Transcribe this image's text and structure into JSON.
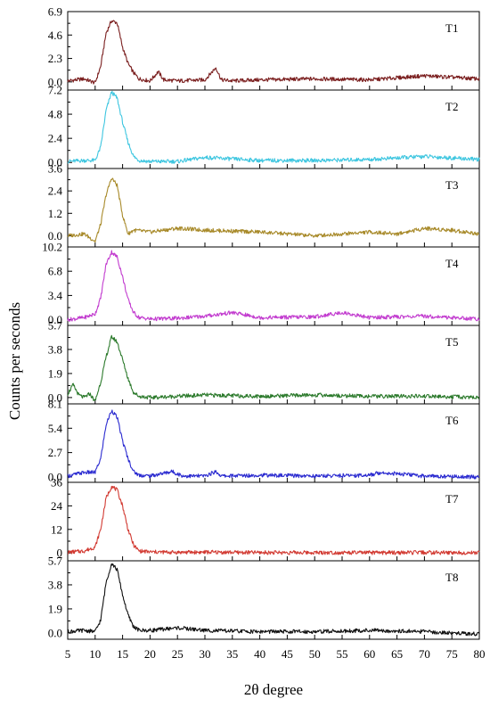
{
  "chart_data": {
    "type": "line",
    "xlabel": "2θ degree",
    "ylabel": "Counts per seconds",
    "xlim": [
      5,
      80
    ],
    "x_ticks": [
      5,
      10,
      15,
      20,
      25,
      30,
      35,
      40,
      45,
      50,
      55,
      60,
      65,
      70,
      75,
      80
    ],
    "x_tick_labels": [
      "5",
      "10",
      "15",
      "20",
      "25",
      "30",
      "35",
      "40",
      "45",
      "50",
      "55",
      "60",
      "65",
      "70",
      "75",
      "80"
    ],
    "panels": [
      {
        "name": "T1",
        "color": "#7a1e1e",
        "ylim": [
          -0.8,
          6.9
        ],
        "y_ticks": [
          0.0,
          2.3,
          4.6,
          6.9
        ],
        "y_tick_labels": [
          "0.0",
          "2.3",
          "4.6",
          "6.9"
        ],
        "x": [
          5,
          8,
          10,
          11,
          12,
          13,
          14,
          15,
          16,
          17,
          18,
          20,
          21.5,
          22.5,
          25,
          30,
          32,
          33,
          35,
          40,
          50,
          60,
          70,
          80
        ],
        "y": [
          0.1,
          0.3,
          -0.1,
          1.5,
          4.8,
          6.0,
          5.8,
          3.4,
          1.8,
          0.9,
          0.3,
          0.1,
          1.0,
          0.2,
          0.1,
          0.2,
          1.4,
          0.2,
          0.1,
          0.2,
          0.3,
          0.2,
          0.6,
          0.3
        ]
      },
      {
        "name": "T2",
        "color": "#3ec6e0",
        "ylim": [
          -0.6,
          7.2
        ],
        "y_ticks": [
          0.0,
          2.4,
          4.8,
          7.2
        ],
        "y_tick_labels": [
          "0.0",
          "2.4",
          "4.8",
          "7.2"
        ],
        "x": [
          5,
          8,
          10,
          11,
          12,
          13,
          14,
          15,
          16,
          17,
          18,
          20,
          25,
          30,
          40,
          50,
          60,
          70,
          80
        ],
        "y": [
          0.1,
          0.2,
          0.2,
          1.5,
          5.2,
          7.0,
          6.4,
          4.0,
          2.0,
          0.6,
          0.2,
          0.1,
          0.1,
          0.5,
          0.2,
          0.2,
          0.3,
          0.6,
          0.3
        ]
      },
      {
        "name": "T3",
        "color": "#a88a2a",
        "ylim": [
          -0.6,
          3.6
        ],
        "y_ticks": [
          0.0,
          1.2,
          2.4,
          3.6
        ],
        "y_tick_labels": [
          "0.0",
          "1.2",
          "2.4",
          "3.6"
        ],
        "x": [
          5,
          8,
          10,
          11,
          12,
          13,
          14,
          15,
          16,
          17,
          20,
          25,
          30,
          40,
          50,
          60,
          65,
          70,
          75,
          80
        ],
        "y": [
          0.0,
          0.1,
          -0.3,
          0.6,
          2.2,
          3.1,
          2.7,
          1.1,
          0.1,
          0.3,
          0.2,
          0.4,
          0.3,
          0.2,
          0.0,
          0.2,
          0.1,
          0.4,
          0.3,
          0.1
        ]
      },
      {
        "name": "T4",
        "color": "#c23ccf",
        "ylim": [
          -0.8,
          10.2
        ],
        "y_ticks": [
          0.0,
          3.4,
          6.8,
          10.2
        ],
        "y_tick_labels": [
          "0.0",
          "3.4",
          "6.8",
          "10.2"
        ],
        "x": [
          5,
          8,
          10,
          11,
          12,
          13,
          14,
          15,
          16,
          17,
          18,
          20,
          25,
          30,
          35,
          40,
          50,
          55,
          60,
          70,
          80
        ],
        "y": [
          0.0,
          0.3,
          0.8,
          3.0,
          7.8,
          9.5,
          8.8,
          6.0,
          2.8,
          1.0,
          0.3,
          0.1,
          0.2,
          0.5,
          1.0,
          0.3,
          0.4,
          1.0,
          0.3,
          0.5,
          0.1
        ]
      },
      {
        "name": "T5",
        "color": "#2c7a2c",
        "ylim": [
          -0.5,
          5.7
        ],
        "y_ticks": [
          0.0,
          1.9,
          3.8,
          5.7
        ],
        "y_tick_labels": [
          "0.0",
          "1.9",
          "3.8",
          "5.7"
        ],
        "x": [
          5,
          6,
          7,
          8,
          9,
          10,
          11,
          12,
          13,
          14,
          15,
          16,
          17,
          18,
          20,
          25,
          30,
          40,
          50,
          60,
          70,
          80
        ],
        "y": [
          0.3,
          1.0,
          0.2,
          0.0,
          0.3,
          -0.3,
          1.2,
          3.2,
          4.8,
          4.4,
          3.0,
          1.5,
          0.4,
          0.1,
          0.0,
          0.1,
          0.2,
          0.1,
          0.2,
          0.1,
          0.1,
          0.0
        ]
      },
      {
        "name": "T6",
        "color": "#2a2ad0",
        "ylim": [
          -0.6,
          8.1
        ],
        "y_ticks": [
          0.0,
          2.7,
          5.4,
          8.1
        ],
        "y_tick_labels": [
          "0.0",
          "2.7",
          "5.4",
          "8.1"
        ],
        "x": [
          5,
          8,
          10,
          11,
          12,
          13,
          14,
          15,
          16,
          17,
          18,
          20,
          24,
          26,
          30,
          32,
          33,
          40,
          50,
          60,
          62,
          70,
          80
        ],
        "y": [
          0.1,
          0.5,
          0.5,
          2.0,
          5.8,
          7.4,
          6.6,
          4.0,
          2.0,
          0.6,
          0.2,
          0.1,
          0.6,
          0.1,
          0.1,
          0.6,
          0.1,
          0.2,
          0.1,
          0.2,
          0.5,
          0.1,
          0.0
        ]
      },
      {
        "name": "T7",
        "color": "#d23a32",
        "ylim": [
          -4,
          36
        ],
        "y_ticks": [
          0,
          12,
          24,
          36
        ],
        "y_tick_labels": [
          "0",
          "12",
          "24",
          "36"
        ],
        "x": [
          5,
          8,
          10,
          11,
          12,
          13,
          14,
          15,
          16,
          17,
          18,
          20,
          25,
          30,
          40,
          50,
          60,
          70,
          80
        ],
        "y": [
          0.3,
          1.0,
          3.0,
          12.0,
          28.0,
          34.0,
          32.0,
          24.0,
          12.0,
          4.0,
          1.0,
          0.5,
          0.3,
          0.4,
          0.2,
          0.2,
          0.1,
          0.2,
          0.1
        ]
      },
      {
        "name": "T8",
        "color": "#111111",
        "ylim": [
          -0.5,
          5.7
        ],
        "y_ticks": [
          0.0,
          1.9,
          3.8,
          5.7
        ],
        "y_tick_labels": [
          "0.0",
          "1.9",
          "3.8",
          "5.7"
        ],
        "x": [
          5,
          8,
          10,
          11,
          12,
          13,
          14,
          15,
          16,
          17,
          18,
          20,
          25,
          30,
          40,
          50,
          60,
          70,
          80
        ],
        "y": [
          0.1,
          0.2,
          0.1,
          1.0,
          4.0,
          5.5,
          5.0,
          3.0,
          1.4,
          0.5,
          0.2,
          0.2,
          0.4,
          0.2,
          0.1,
          0.1,
          0.2,
          0.1,
          -0.1
        ]
      }
    ]
  }
}
